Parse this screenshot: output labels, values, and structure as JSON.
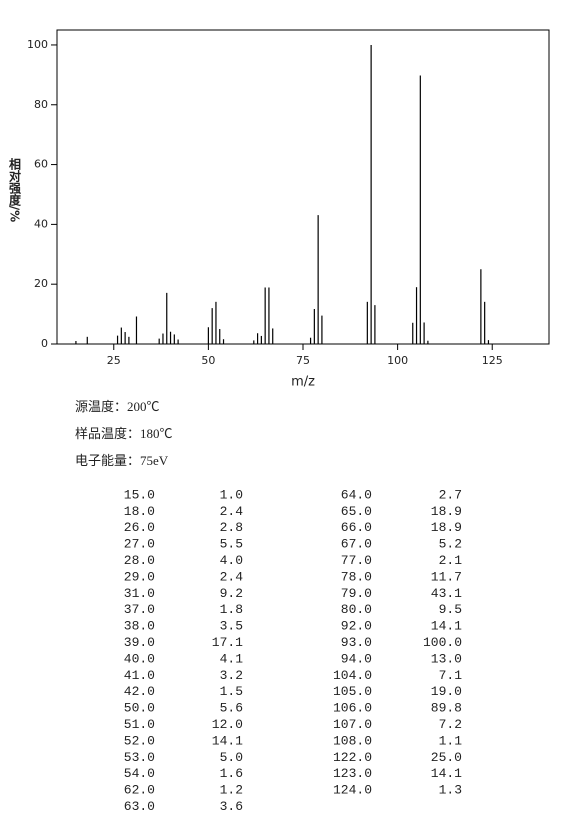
{
  "chart_data": {
    "type": "stem",
    "ylabel": "相对强度/%",
    "xlabel": "m/z",
    "color": "#000000",
    "x": [
      15,
      18,
      26,
      27,
      28,
      29,
      31,
      37,
      38,
      39,
      40,
      41,
      42,
      50,
      51,
      52,
      53,
      54,
      62,
      63,
      64,
      65,
      66,
      67,
      77,
      78,
      79,
      80,
      92,
      93,
      94,
      104,
      105,
      106,
      107,
      108,
      122,
      123,
      124
    ],
    "values": [
      1.0,
      2.4,
      2.8,
      5.5,
      4.0,
      2.4,
      9.2,
      1.8,
      3.5,
      17.1,
      4.1,
      3.2,
      1.5,
      5.6,
      12.0,
      14.1,
      5.0,
      1.6,
      1.2,
      3.6,
      2.7,
      18.9,
      18.9,
      5.2,
      2.1,
      11.7,
      43.1,
      9.5,
      14.1,
      100.0,
      13.0,
      7.1,
      19.0,
      89.8,
      7.2,
      1.1,
      25.0,
      14.1,
      1.3
    ],
    "xlim": [
      10,
      140
    ],
    "xticks": [
      25,
      50,
      75,
      100,
      125
    ],
    "ylim": [
      0,
      105
    ],
    "yticks": [
      0,
      20,
      40,
      60,
      80,
      100
    ]
  },
  "conditions": [
    "源温度：200℃",
    "样品温度：180℃",
    "电子能量：75eV"
  ],
  "table": {
    "left": [
      [
        "15.0",
        "1.0"
      ],
      [
        "18.0",
        "2.4"
      ],
      [
        "26.0",
        "2.8"
      ],
      [
        "27.0",
        "5.5"
      ],
      [
        "28.0",
        "4.0"
      ],
      [
        "29.0",
        "2.4"
      ],
      [
        "31.0",
        "9.2"
      ],
      [
        "37.0",
        "1.8"
      ],
      [
        "38.0",
        "3.5"
      ],
      [
        "39.0",
        "17.1"
      ],
      [
        "40.0",
        "4.1"
      ],
      [
        "41.0",
        "3.2"
      ],
      [
        "42.0",
        "1.5"
      ],
      [
        "50.0",
        "5.6"
      ],
      [
        "51.0",
        "12.0"
      ],
      [
        "52.0",
        "14.1"
      ],
      [
        "53.0",
        "5.0"
      ],
      [
        "54.0",
        "1.6"
      ],
      [
        "62.0",
        "1.2"
      ],
      [
        "63.0",
        "3.6"
      ]
    ],
    "right": [
      [
        "64.0",
        "2.7"
      ],
      [
        "65.0",
        "18.9"
      ],
      [
        "66.0",
        "18.9"
      ],
      [
        "67.0",
        "5.2"
      ],
      [
        "77.0",
        "2.1"
      ],
      [
        "78.0",
        "11.7"
      ],
      [
        "79.0",
        "43.1"
      ],
      [
        "80.0",
        "9.5"
      ],
      [
        "92.0",
        "14.1"
      ],
      [
        "93.0",
        "100.0"
      ],
      [
        "94.0",
        "13.0"
      ],
      [
        "104.0",
        "7.1"
      ],
      [
        "105.0",
        "19.0"
      ],
      [
        "106.0",
        "89.8"
      ],
      [
        "107.0",
        "7.2"
      ],
      [
        "108.0",
        "1.1"
      ],
      [
        "122.0",
        "25.0"
      ],
      [
        "123.0",
        "14.1"
      ],
      [
        "124.0",
        "1.3"
      ]
    ]
  }
}
